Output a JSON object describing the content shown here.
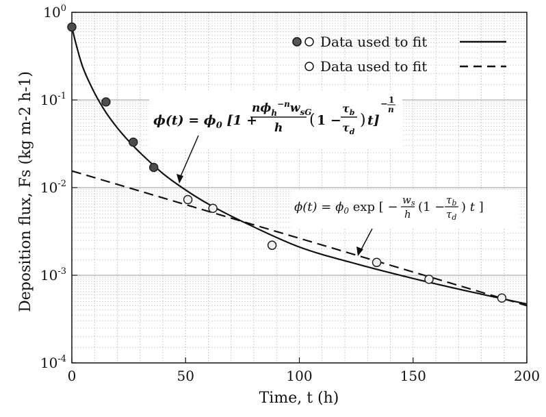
{
  "chart_data": {
    "type": "scatter",
    "xlabel": "Time, t (h)",
    "ylabel": "Deposition flux, Fs (kg m-2 h-1)",
    "y_scale": "log",
    "xlim": [
      0,
      200
    ],
    "ylim": [
      0.0001,
      1
    ],
    "grid": true,
    "x_ticks": [
      "0",
      "50",
      "100",
      "150",
      "200"
    ],
    "y_ticks": [
      {
        "base": "10",
        "exp": "-4"
      },
      {
        "base": "10",
        "exp": "-3"
      },
      {
        "base": "10",
        "exp": "-2"
      },
      {
        "base": "10",
        "exp": "-1"
      },
      {
        "base": "10",
        "exp": "0"
      }
    ],
    "legend_position": "top-right",
    "legend": [
      {
        "label": "Data used to fit",
        "marker": "filled-and-open",
        "line": "solid"
      },
      {
        "label": "Data used to fit",
        "marker": "open",
        "line": "dashed"
      }
    ],
    "series": [
      {
        "name": "Data used to fit",
        "marker": "filled",
        "x": [
          0,
          15,
          27,
          36
        ],
        "y": [
          0.68,
          0.095,
          0.033,
          0.017
        ]
      },
      {
        "name": "Data used to fit",
        "marker": "open",
        "x": [
          51,
          62,
          88,
          134,
          157,
          189
        ],
        "y": [
          0.0073,
          0.0058,
          0.0022,
          0.0014,
          0.0009,
          0.00055
        ]
      },
      {
        "name": "solid fit",
        "style": "solid",
        "x": [
          0,
          2,
          5,
          10,
          15,
          20,
          25,
          30,
          40,
          50,
          60,
          75,
          100,
          125,
          150,
          175,
          200
        ],
        "y": [
          0.68,
          0.42,
          0.23,
          0.12,
          0.072,
          0.048,
          0.034,
          0.025,
          0.0145,
          0.0094,
          0.0065,
          0.0041,
          0.0021,
          0.00135,
          0.00092,
          0.00065,
          0.00047
        ]
      },
      {
        "name": "dashed fit",
        "style": "dashed",
        "x": [
          0,
          200
        ],
        "y": [
          0.0155,
          0.00045
        ]
      }
    ],
    "annotations": [
      {
        "text": "φ(t) = φ0 [1 + (n φh^-n wsG / h)(1 − τb/τd) t]^(−1/n)",
        "arrow_to_series": "solid fit"
      },
      {
        "text": "φ(t) = φ0 exp[ − (ws/h)(1 − τb/τd) t ]",
        "arrow_to_series": "dashed fit"
      }
    ]
  }
}
